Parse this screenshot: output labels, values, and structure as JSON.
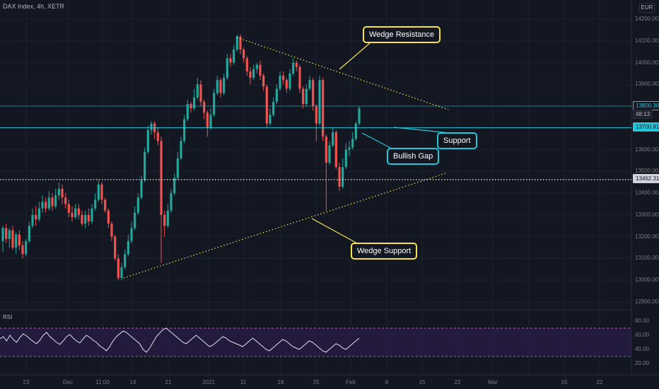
{
  "header": {
    "symbol_title": "DAX Index, 4h, XETR",
    "currency": "EUR"
  },
  "colors": {
    "background": "#131722",
    "bull": "#26a69a",
    "bear": "#ef5350",
    "wedge_line": "#f7e04b",
    "level_line": "#26c6da",
    "rsi_line": "#e0e3eb",
    "rsi_band": "#2a1e4a",
    "rsi_bound": "#b85cab"
  },
  "price_axis": {
    "ticks": [
      "14200.00",
      "14100.00",
      "14000.00",
      "13900.00",
      "13800.00",
      "13700.00",
      "13600.00",
      "13500.00",
      "13400.00",
      "13300.00",
      "13200.00",
      "13100.00",
      "13000.00",
      "12900.00"
    ]
  },
  "price_tags": [
    {
      "label": "13800.300",
      "style": "outline"
    },
    {
      "label": "48:13",
      "style": "dark"
    },
    {
      "label": "13700.818",
      "style": "filled"
    },
    {
      "label": "13462.312",
      "style": "light"
    }
  ],
  "time_axis": {
    "ticks": [
      "23",
      "Dec",
      "11:00",
      "14",
      "21",
      "2021",
      "11",
      "18",
      "25",
      "Feb",
      "8",
      "15",
      "22",
      "Mar",
      "15",
      "22"
    ]
  },
  "annotations": {
    "wedge_resistance": "Wedge Resistance",
    "support": "Support",
    "bullish_gap": "Bullish Gap",
    "wedge_support": "Wedge Support"
  },
  "rsi": {
    "label": "RSI",
    "ticks": [
      "80.00",
      "60.00",
      "40.00",
      "20.00"
    ],
    "upper": 70,
    "lower": 30
  },
  "chart_data": {
    "type": "candlestick",
    "ylim": [
      12850,
      14250
    ],
    "levels": [
      13800.3,
      13700.818,
      13462.312
    ],
    "candles": [
      [
        13180,
        13240,
        13130,
        13250
      ],
      [
        13240,
        13190,
        13170,
        13260
      ],
      [
        13190,
        13230,
        13150,
        13240
      ],
      [
        13230,
        13150,
        13140,
        13250
      ],
      [
        13150,
        13210,
        13120,
        13220
      ],
      [
        13210,
        13160,
        13140,
        13230
      ],
      [
        13160,
        13120,
        13100,
        13180
      ],
      [
        13120,
        13180,
        13110,
        13190
      ],
      [
        13180,
        13250,
        13170,
        13270
      ],
      [
        13250,
        13300,
        13240,
        13330
      ],
      [
        13300,
        13280,
        13250,
        13340
      ],
      [
        13280,
        13330,
        13270,
        13360
      ],
      [
        13330,
        13360,
        13310,
        13390
      ],
      [
        13360,
        13330,
        13310,
        13380
      ],
      [
        13330,
        13380,
        13320,
        13410
      ],
      [
        13380,
        13340,
        13320,
        13400
      ],
      [
        13340,
        13390,
        13330,
        13420
      ],
      [
        13390,
        13420,
        13370,
        13450
      ],
      [
        13420,
        13380,
        13350,
        13440
      ],
      [
        13380,
        13350,
        13330,
        13400
      ],
      [
        13350,
        13310,
        13290,
        13370
      ],
      [
        13310,
        13290,
        13270,
        13340
      ],
      [
        13290,
        13330,
        13280,
        13350
      ],
      [
        13330,
        13300,
        13280,
        13350
      ],
      [
        13300,
        13260,
        13250,
        13320
      ],
      [
        13260,
        13300,
        13240,
        13320
      ],
      [
        13300,
        13270,
        13250,
        13330
      ],
      [
        13270,
        13330,
        13260,
        13350
      ],
      [
        13330,
        13370,
        13320,
        13400
      ],
      [
        13370,
        13440,
        13360,
        13460
      ],
      [
        13440,
        13370,
        13350,
        13450
      ],
      [
        13370,
        13320,
        13310,
        13380
      ],
      [
        13320,
        13260,
        13240,
        13330
      ],
      [
        13260,
        13200,
        13180,
        13270
      ],
      [
        13200,
        13100,
        13090,
        13210
      ],
      [
        13100,
        13010,
        13000,
        13120
      ],
      [
        13010,
        13060,
        13000,
        13080
      ],
      [
        13060,
        13120,
        13050,
        13140
      ],
      [
        13120,
        13180,
        13110,
        13210
      ],
      [
        13180,
        13240,
        13170,
        13270
      ],
      [
        13240,
        13310,
        13230,
        13340
      ],
      [
        13310,
        13380,
        13300,
        13400
      ],
      [
        13380,
        13460,
        13370,
        13480
      ],
      [
        13460,
        13590,
        13450,
        13610
      ],
      [
        13590,
        13690,
        13580,
        13710
      ],
      [
        13690,
        13720,
        13670,
        13730
      ],
      [
        13720,
        13680,
        13650,
        13730
      ],
      [
        13680,
        13640,
        13620,
        13700
      ],
      [
        13640,
        13300,
        13080,
        13660
      ],
      [
        13300,
        13250,
        13200,
        13320
      ],
      [
        13250,
        13320,
        13240,
        13350
      ],
      [
        13320,
        13400,
        13310,
        13420
      ],
      [
        13400,
        13470,
        13390,
        13490
      ],
      [
        13470,
        13560,
        13460,
        13590
      ],
      [
        13560,
        13640,
        13550,
        13660
      ],
      [
        13640,
        13740,
        13630,
        13760
      ],
      [
        13740,
        13810,
        13730,
        13830
      ],
      [
        13810,
        13790,
        13770,
        13820
      ],
      [
        13790,
        13840,
        13780,
        13880
      ],
      [
        13840,
        13900,
        13830,
        13930
      ],
      [
        13900,
        13820,
        13800,
        13920
      ],
      [
        13820,
        13770,
        13740,
        13830
      ],
      [
        13770,
        13700,
        13660,
        13780
      ],
      [
        13700,
        13760,
        13690,
        13790
      ],
      [
        13760,
        13860,
        13750,
        13880
      ],
      [
        13860,
        13920,
        13850,
        13940
      ],
      [
        13920,
        13860,
        13840,
        13930
      ],
      [
        13860,
        13930,
        13850,
        13950
      ],
      [
        13930,
        14020,
        13920,
        14040
      ],
      [
        14020,
        14000,
        13980,
        14040
      ],
      [
        14000,
        14060,
        13990,
        14080
      ],
      [
        14060,
        14120,
        14050,
        14130
      ],
      [
        14120,
        14060,
        14040,
        14130
      ],
      [
        14060,
        14020,
        14000,
        14070
      ],
      [
        14020,
        13960,
        13940,
        14030
      ],
      [
        13960,
        13930,
        13900,
        13980
      ],
      [
        13930,
        13970,
        13920,
        13990
      ],
      [
        13970,
        13990,
        13950,
        14000
      ],
      [
        13990,
        13940,
        13920,
        14010
      ],
      [
        13940,
        13890,
        13870,
        13950
      ],
      [
        13890,
        13720,
        13700,
        13900
      ],
      [
        13720,
        13760,
        13710,
        13790
      ],
      [
        13760,
        13820,
        13750,
        13840
      ],
      [
        13820,
        13880,
        13810,
        13900
      ],
      [
        13880,
        13940,
        13870,
        13960
      ],
      [
        13940,
        13920,
        13900,
        13960
      ],
      [
        13920,
        13880,
        13860,
        13930
      ],
      [
        13880,
        13950,
        13870,
        13970
      ],
      [
        13950,
        14000,
        13940,
        14020
      ],
      [
        14000,
        13980,
        13960,
        14010
      ],
      [
        13980,
        13880,
        13860,
        13990
      ],
      [
        13880,
        13810,
        13790,
        13890
      ],
      [
        13810,
        13880,
        13800,
        13900
      ],
      [
        13880,
        13920,
        13870,
        13940
      ],
      [
        13920,
        13800,
        13780,
        13930
      ],
      [
        13800,
        13720,
        13640,
        13810
      ],
      [
        13720,
        13920,
        13710,
        13940
      ],
      [
        13920,
        13660,
        13640,
        13930
      ],
      [
        13660,
        13540,
        13320,
        13670
      ],
      [
        13540,
        13620,
        13530,
        13640
      ],
      [
        13620,
        13680,
        13610,
        13700
      ],
      [
        13680,
        13520,
        13510,
        13690
      ],
      [
        13520,
        13430,
        13410,
        13540
      ],
      [
        13430,
        13520,
        13420,
        13560
      ],
      [
        13520,
        13600,
        13510,
        13630
      ],
      [
        13600,
        13610,
        13570,
        13640
      ],
      [
        13610,
        13650,
        13600,
        13680
      ],
      [
        13650,
        13720,
        13640,
        13730
      ],
      [
        13720,
        13790,
        13710,
        13800
      ]
    ],
    "wedge_resistance_line": [
      [
        14120,
        13790
      ]
    ],
    "wedge_support_line": [
      [
        12990,
        13490
      ]
    ]
  }
}
